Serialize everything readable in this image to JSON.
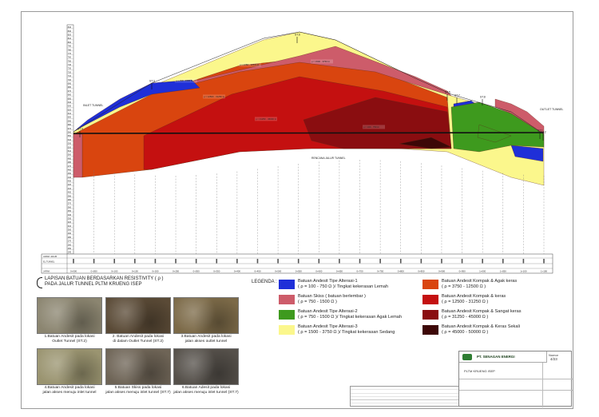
{
  "section": {
    "stations": [
      "ST.4",
      "ST.3",
      "ST.6",
      "ST.5",
      "ST.7",
      "ST.8",
      "ST.1",
      "ST.2"
    ],
    "labels": {
      "inlet": "INLET TUNNEL",
      "outlet": "OUTLET TUNNEL",
      "route": "RENCANA JALUR TUNNEL"
    },
    "elevations": [
      "840",
      "830",
      "820",
      "810",
      "800",
      "790",
      "780",
      "770",
      "760",
      "750",
      "740",
      "730",
      "720",
      "710",
      "700",
      "690",
      "680",
      "670",
      "660",
      "650",
      "640",
      "630",
      "620",
      "610",
      "600",
      "590",
      "580",
      "570",
      "560",
      "550",
      "540",
      "530",
      "520",
      "510",
      "500",
      "490",
      "480",
      "470",
      "460",
      "450",
      "440",
      "430",
      "420",
      "410",
      "400",
      "390",
      "380",
      "370",
      "360",
      "350",
      "340",
      "330",
      "320",
      "310",
      "300",
      "290",
      "280",
      "270",
      "260",
      "250",
      "240",
      "230"
    ],
    "chainage": [
      "0+000",
      "0+050",
      "0+100",
      "0+150",
      "0+200",
      "0+250",
      "0+300",
      "0+350",
      "0+400",
      "0+450",
      "0+500",
      "0+550",
      "0+600",
      "0+650",
      "0+700",
      "0+750",
      "0+800",
      "0+850",
      "0+900",
      "0+950",
      "1+000",
      "1+050",
      "1+100",
      "1+150"
    ],
    "row_labels": [
      "JARAK JALUR",
      "EL.TUNNEL",
      "JARAK"
    ],
    "resistivity_tags": [
      "ρ = 750 - 1500 Ω",
      "ρ = 3750 - 12500 Ω",
      "ρ = 1500 - 3750 Ω",
      "ρ = 12500 - 31250 Ω",
      "ρ = 31250 - 45000 Ω",
      "ρ = 100 - 750 Ω"
    ]
  },
  "title": {
    "line1": "LAPISAN BATUAN BERDASARKAN RESISTIVITY ( ρ )",
    "line2": "PADA JALUR TUNNEL PLTM KRUENG ISEP"
  },
  "legend": {
    "heading": "LEGENDA :",
    "items": [
      {
        "color": "#1f2fd8",
        "text": "Batuan Andesit Tipe Alterasi-1\n( ρ = 100 - 750 Ω )/ Tingkat kekerasan Lemah"
      },
      {
        "color": "#cd5c6a",
        "text": "Batuan Skiss ( batuan berlembar )\n( ρ = 750 - 1500 Ω )"
      },
      {
        "color": "#3e9a1e",
        "text": "Batuan Andesit Tipe Alterasi-2\n( ρ = 750 - 1500 Ω )/ Tingkat kekerasan Agak Lemah"
      },
      {
        "color": "#fbf78c",
        "text": "Batuan Andesit Tipe Alterasi-3\n( ρ = 1500 - 3750 Ω )/ Tingkat kekerasan Sedang"
      },
      {
        "color": "#d9450f",
        "text": "Batuan Andesit Kompak & Agak keras\n( ρ = 3750 - 12500 Ω )"
      },
      {
        "color": "#c41010",
        "text": "Batuan Andesit Kompak & keras\n( ρ = 12500 - 31250 Ω )"
      },
      {
        "color": "#8a0d10",
        "text": "Batuan Andesit Kompak & Sangat keras\n( ρ = 31250 - 45000 Ω )"
      },
      {
        "color": "#3d0707",
        "text": "Batuan Andesit Kompak & Keras Sekali\n( ρ = 45000 - 50000 Ω )"
      }
    ]
  },
  "photos": [
    {
      "caption": "1.Batuan Andesit pada lokasi\nOutlet Tunnel (ST.2)",
      "tone": "#8b8570"
    },
    {
      "caption": "2. Batuan Andesit pada lokasi\ndi dalam Outlet Tunnel (ST.2)",
      "tone": "#5a4a36"
    },
    {
      "caption": "3.Batuan Andesit pada lokasi\njalan akses outlet tunnel",
      "tone": "#7c6a48"
    },
    {
      "caption": "4.Batuan Andesit pada lokasi\njalan akses menuju inlet tunnel",
      "tone": "#9a9470"
    },
    {
      "caption": "5.Batuan Skiss pada lokasi\njalan akses menuju inlet tunnel (ST.7)",
      "tone": "#6e6456"
    },
    {
      "caption": "6.Batuan Adesit pada lokasi\njalan akses menuju inlet tunnel (ST.7)",
      "tone": "#55504a"
    }
  ],
  "title_block": {
    "company": "PT. SENAGAN ENERGI",
    "project_small": "PLTM KRUENG ISEP",
    "sheet_no": "4/23",
    "sheet_label": "Nomor"
  },
  "colors": {
    "blue": "#1f2fd8",
    "pink": "#cd5c6a",
    "green": "#3e9a1e",
    "yellow": "#fbf78c",
    "orange": "#d9450f",
    "red": "#c41010",
    "darkred": "#8a0d10",
    "maroon": "#3d0707"
  }
}
